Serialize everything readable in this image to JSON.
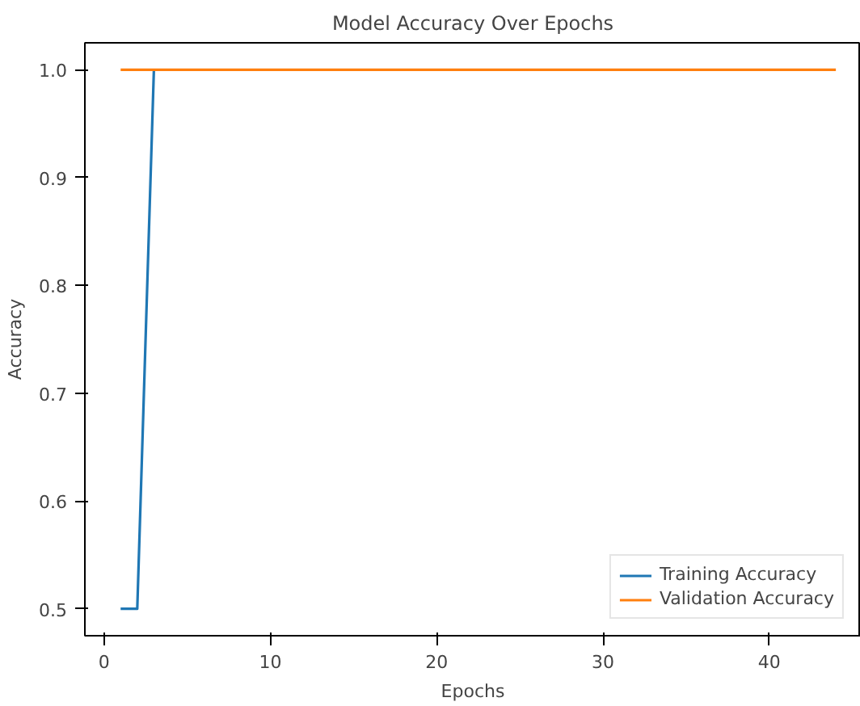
{
  "chart_data": {
    "type": "line",
    "title": "Model Accuracy Over Epochs",
    "xlabel": "Epochs",
    "ylabel": "Accuracy",
    "x": [
      1,
      2,
      3,
      4,
      5,
      6,
      7,
      8,
      9,
      10,
      11,
      12,
      13,
      14,
      15,
      16,
      17,
      18,
      19,
      20,
      21,
      22,
      23,
      24,
      25,
      26,
      27,
      28,
      29,
      30,
      31,
      32,
      33,
      34,
      35,
      36,
      37,
      38,
      39,
      40,
      41,
      42,
      43,
      44
    ],
    "series": [
      {
        "name": "Training Accuracy",
        "color": "#1f77b4",
        "values": [
          0.5,
          0.5,
          1.0,
          null,
          null,
          null,
          null,
          null,
          null,
          null,
          null,
          null,
          null,
          null,
          null,
          null,
          null,
          null,
          null,
          null,
          null,
          null,
          null,
          null,
          null,
          null,
          null,
          null,
          null,
          null,
          null,
          null,
          null,
          null,
          null,
          null,
          null,
          null,
          null,
          null,
          null,
          null,
          null,
          null
        ]
      },
      {
        "name": "Validation Accuracy",
        "color": "#ff7f0e",
        "values": [
          1.0,
          1.0,
          1.0,
          1.0,
          1.0,
          1.0,
          1.0,
          1.0,
          1.0,
          1.0,
          1.0,
          1.0,
          1.0,
          1.0,
          1.0,
          1.0,
          1.0,
          1.0,
          1.0,
          1.0,
          1.0,
          1.0,
          1.0,
          1.0,
          1.0,
          1.0,
          1.0,
          1.0,
          1.0,
          1.0,
          1.0,
          1.0,
          1.0,
          1.0,
          1.0,
          1.0,
          1.0,
          1.0,
          1.0,
          1.0,
          1.0,
          1.0,
          1.0,
          1.0
        ]
      }
    ],
    "xlim": [
      -1.15,
      45.5
    ],
    "ylim": [
      0.475,
      1.025
    ],
    "xticks": [
      0,
      10,
      20,
      30,
      40
    ],
    "yticks": [
      {
        "value": 0.5,
        "label": "0.5"
      },
      {
        "value": 0.6,
        "label": "0.6"
      },
      {
        "value": 0.7,
        "label": "0.7"
      },
      {
        "value": 0.8,
        "label": "0.8"
      },
      {
        "value": 0.9,
        "label": "0.9"
      },
      {
        "value": 1.0,
        "label": "1.0"
      }
    ],
    "legend": "bottom right",
    "grid": false
  }
}
